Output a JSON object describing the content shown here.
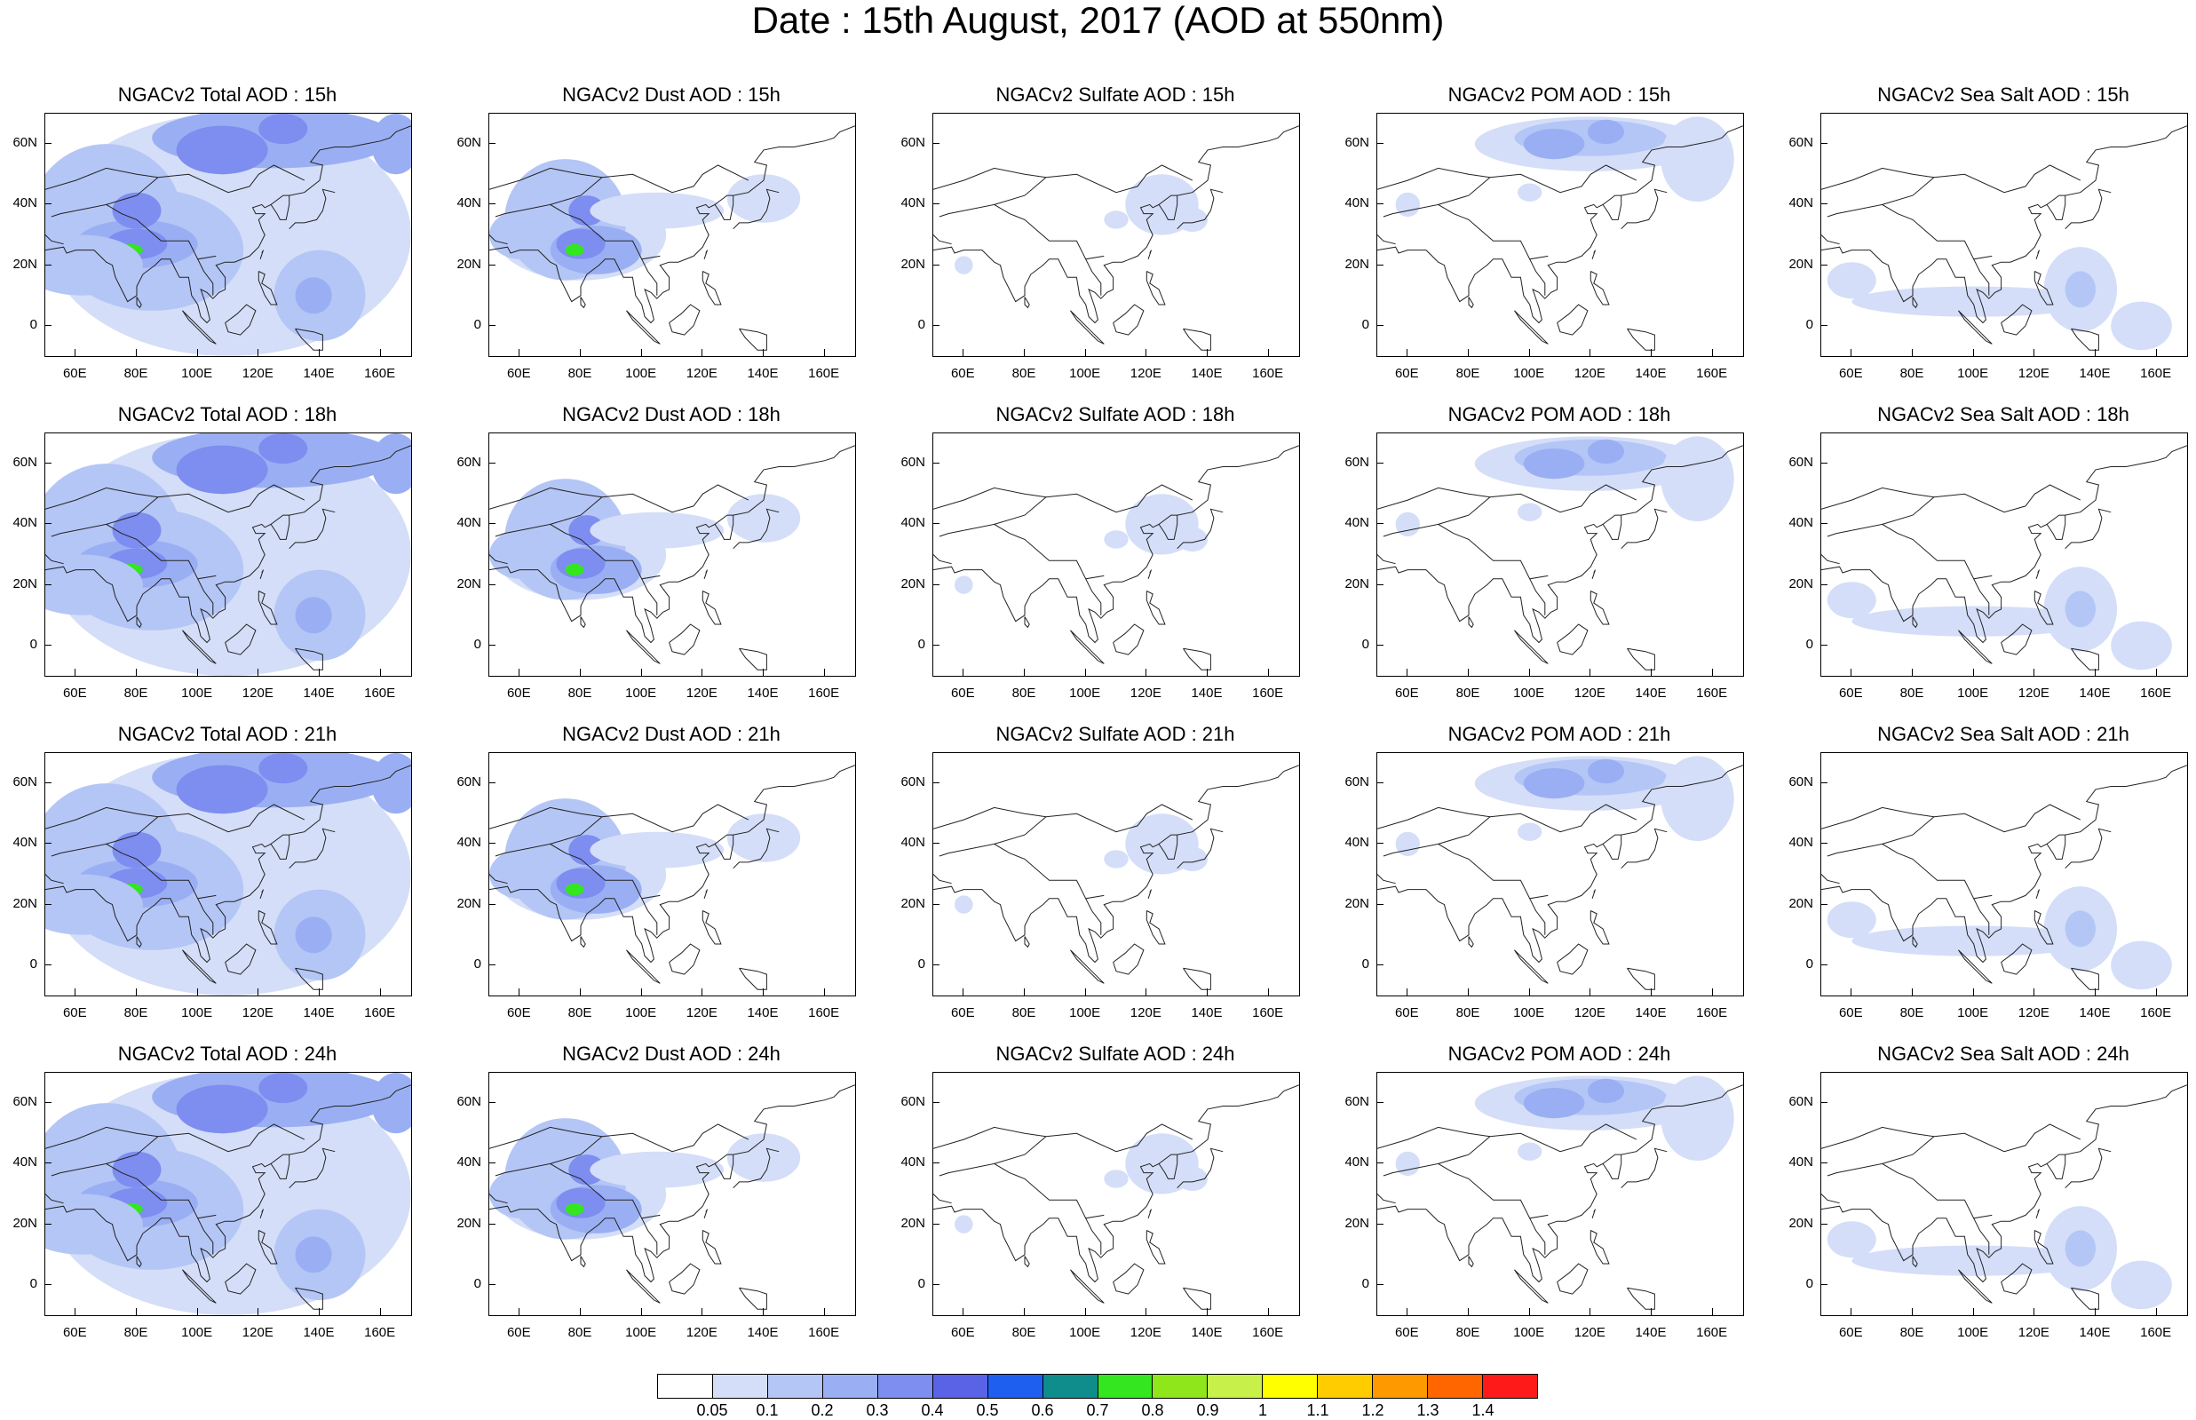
{
  "title": "Date : 15th August, 2017 (AOD at 550nm)",
  "rows": [
    [
      "NGACv2 Total AOD : 15h",
      "NGACv2 Dust AOD : 15h",
      "NGACv2 Sulfate AOD : 15h",
      "NGACv2 POM AOD : 15h",
      "NGACv2 Sea Salt AOD : 15h"
    ],
    [
      "NGACv2 Total AOD : 18h",
      "NGACv2 Dust AOD : 18h",
      "NGACv2 Sulfate AOD : 18h",
      "NGACv2 POM AOD : 18h",
      "NGACv2 Sea Salt AOD : 18h"
    ],
    [
      "NGACv2 Total AOD : 21h",
      "NGACv2 Dust AOD : 21h",
      "NGACv2 Sulfate AOD : 21h",
      "NGACv2 POM AOD : 21h",
      "NGACv2 Sea Salt AOD : 21h"
    ],
    [
      "NGACv2 Total AOD : 24h",
      "NGACv2 Dust AOD : 24h",
      "NGACv2 Sulfate AOD : 24h",
      "NGACv2 POM AOD : 24h",
      "NGACv2 Sea Salt  AOD : 24h"
    ]
  ],
  "y_ticks": [
    "60N",
    "40N",
    "20N",
    "0"
  ],
  "x_ticks": [
    "60E",
    "80E",
    "100E",
    "120E",
    "140E",
    "160E"
  ],
  "colorbar": {
    "labels": [
      "0.05",
      "0.1",
      "0.2",
      "0.3",
      "0.4",
      "0.5",
      "0.6",
      "0.7",
      "0.8",
      "0.9",
      "1",
      "1.1",
      "1.2",
      "1.3",
      "1.4"
    ],
    "colors": [
      "#ffffff",
      "#d4def8",
      "#b4c6f6",
      "#9aaff3",
      "#7e8df0",
      "#5a63e6",
      "#1f5ff0",
      "#0f8c8c",
      "#33e61f",
      "#8fe61a",
      "#c8f04a",
      "#ffff00",
      "#ffcc00",
      "#ff9900",
      "#ff6600",
      "#ff1a1a"
    ]
  },
  "map_extent": {
    "lon": [
      50,
      170
    ],
    "lat": [
      -10,
      70
    ]
  }
}
